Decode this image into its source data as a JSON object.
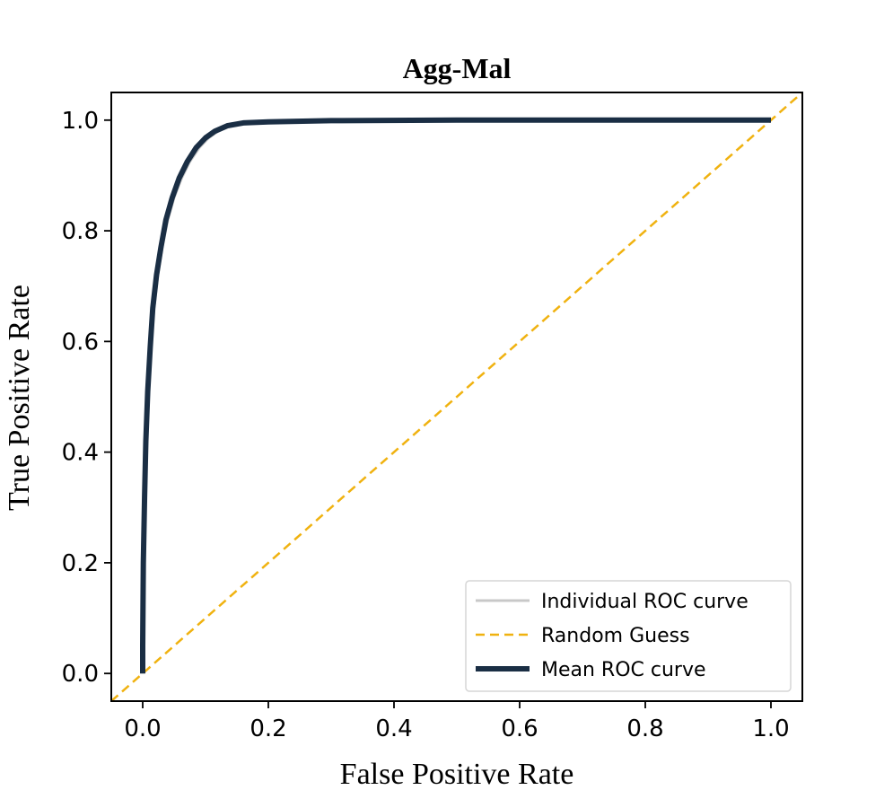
{
  "chart_data": {
    "type": "line",
    "title": "Agg-Mal",
    "xlabel": "False Positive Rate",
    "ylabel": "True Positive Rate",
    "xlim": [
      -0.05,
      1.05
    ],
    "ylim": [
      -0.05,
      1.05
    ],
    "xticks": [
      "0.0",
      "0.2",
      "0.4",
      "0.6",
      "0.8",
      "1.0"
    ],
    "yticks": [
      "0.0",
      "0.2",
      "0.4",
      "0.6",
      "0.8",
      "1.0"
    ],
    "grid": false,
    "legend_position": "lower right",
    "series": [
      {
        "name": "Individual ROC curve",
        "color": "#c8c8c8",
        "style": "solid",
        "x": [
          0.0,
          0.0,
          0.002,
          0.004,
          0.006,
          0.009,
          0.013,
          0.018,
          0.024,
          0.031,
          0.04,
          0.05,
          0.062,
          0.075,
          0.09,
          0.105,
          0.12,
          0.14,
          0.17,
          0.22,
          0.3,
          0.5,
          0.75,
          1.0
        ],
        "y": [
          0.0,
          0.05,
          0.2,
          0.32,
          0.42,
          0.51,
          0.59,
          0.66,
          0.72,
          0.77,
          0.82,
          0.86,
          0.895,
          0.925,
          0.95,
          0.968,
          0.98,
          0.99,
          0.995,
          0.997,
          0.999,
          1.0,
          1.0,
          1.0
        ]
      },
      {
        "name": "Random Guess",
        "color": "#f0b210",
        "style": "dashed",
        "x": [
          -0.05,
          1.05
        ],
        "y": [
          -0.05,
          1.05
        ]
      },
      {
        "name": "Mean ROC curve",
        "color": "#1a2e44",
        "style": "solid",
        "x": [
          0.0,
          0.0,
          0.001,
          0.003,
          0.005,
          0.008,
          0.012,
          0.016,
          0.022,
          0.029,
          0.037,
          0.047,
          0.058,
          0.071,
          0.085,
          0.1,
          0.115,
          0.135,
          0.16,
          0.2,
          0.3,
          0.5,
          0.75,
          1.0
        ],
        "y": [
          0.0,
          0.05,
          0.2,
          0.32,
          0.42,
          0.51,
          0.59,
          0.66,
          0.72,
          0.77,
          0.82,
          0.86,
          0.895,
          0.925,
          0.95,
          0.968,
          0.98,
          0.99,
          0.995,
          0.997,
          0.999,
          1.0,
          1.0,
          1.0
        ]
      }
    ]
  }
}
